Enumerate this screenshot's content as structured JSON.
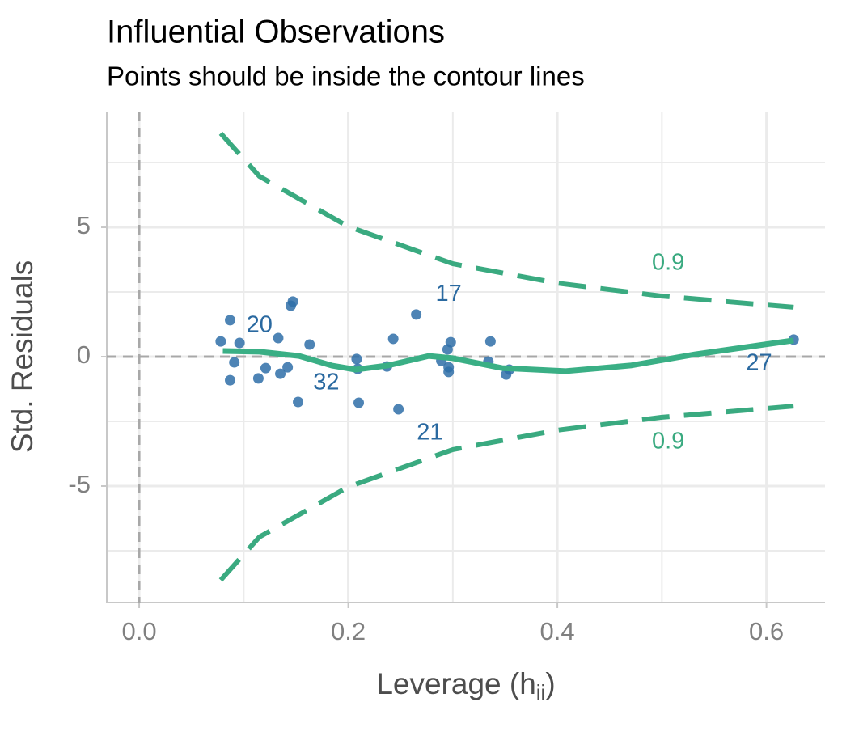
{
  "chart_data": {
    "type": "scatter",
    "title": "Influential Observations",
    "subtitle": "Points should be inside the contour lines",
    "xlabel": [
      "Leverage (h",
      "ii",
      ")"
    ],
    "ylabel": "Std. Residuals",
    "xlim": [
      -0.031,
      0.656
    ],
    "ylim": [
      -9.5,
      9.47
    ],
    "xticks": [
      {
        "value": 0,
        "label": "0.0"
      },
      0.2,
      0.4,
      0.6
    ],
    "yticks": [
      -5,
      0,
      5
    ],
    "minor_xticks": [
      0.1,
      0.3,
      0.5
    ],
    "minor_yticks": [
      -7.5,
      -2.5,
      2.5,
      7.5
    ],
    "grid": true,
    "hlines": [
      0
    ],
    "vlines": [
      0
    ],
    "series": [
      {
        "kind": "points",
        "color": "#2f6ea8",
        "x": [
          0.078,
          0.087,
          0.087,
          0.091,
          0.096,
          0.114,
          0.121,
          0.133,
          0.135,
          0.142,
          0.145,
          0.147,
          0.152,
          0.163,
          0.208,
          0.209,
          0.21,
          0.237,
          0.243,
          0.248,
          0.265,
          0.289,
          0.295,
          0.296,
          0.296,
          0.298,
          0.334,
          0.336,
          0.351,
          0.354,
          0.626
        ],
        "values": [
          0.59,
          1.41,
          -0.91,
          -0.22,
          0.53,
          -0.84,
          -0.44,
          0.72,
          -0.66,
          -0.41,
          1.97,
          2.13,
          -1.75,
          0.47,
          -0.09,
          -0.47,
          -1.78,
          -0.38,
          0.69,
          -2.03,
          1.63,
          -0.16,
          0.28,
          -0.41,
          -0.59,
          0.56,
          -0.19,
          0.59,
          -0.69,
          -0.5,
          0.66
        ]
      },
      {
        "kind": "line",
        "dashed": true,
        "color": "#3aaa80",
        "x": [
          0.078,
          0.115,
          0.2,
          0.3,
          0.4,
          0.5,
          0.626
        ],
        "values": [
          8.63,
          6.97,
          5.03,
          3.59,
          2.84,
          2.34,
          1.91
        ]
      },
      {
        "kind": "line",
        "dashed": true,
        "color": "#3aaa80",
        "x": [
          0.078,
          0.115,
          0.2,
          0.3,
          0.4,
          0.5,
          0.626
        ],
        "values": [
          -8.63,
          -6.97,
          -5.03,
          -3.59,
          -2.84,
          -2.34,
          -1.91
        ]
      },
      {
        "kind": "line",
        "dashed": false,
        "color": "#3aaf85",
        "x": [
          0.08,
          0.115,
          0.153,
          0.184,
          0.207,
          0.238,
          0.277,
          0.3,
          0.347,
          0.408,
          0.47,
          0.532,
          0.626
        ],
        "values": [
          0.22,
          0.19,
          0.03,
          -0.34,
          -0.5,
          -0.34,
          0.03,
          -0.06,
          -0.44,
          -0.56,
          -0.34,
          0.09,
          0.63
        ]
      }
    ],
    "annotations": [
      {
        "text": "20",
        "x": 0.115,
        "y": 1.19,
        "color": "#2a69a0"
      },
      {
        "text": "17",
        "x": 0.296,
        "y": 2.4,
        "color": "#2a69a0"
      },
      {
        "text": "32",
        "x": 0.179,
        "y": -1.03,
        "color": "#2a69a0"
      },
      {
        "text": "21",
        "x": 0.278,
        "y": -2.97,
        "color": "#2a69a0"
      },
      {
        "text": "27",
        "x": 0.593,
        "y": -0.28,
        "color": "#2a69a0"
      },
      {
        "text": "0.9",
        "x": 0.506,
        "y": 3.6,
        "color": "#3aaa80"
      },
      {
        "text": "0.9",
        "x": 0.506,
        "y": -3.31,
        "color": "#3aaa80"
      }
    ]
  }
}
